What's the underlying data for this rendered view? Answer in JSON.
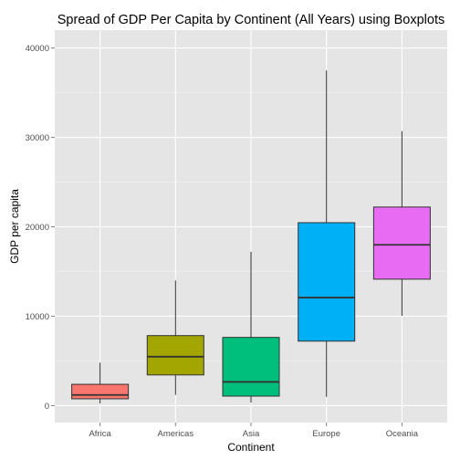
{
  "chart_data": {
    "type": "boxplot",
    "title": "Spread of GDP Per Capita by Continent (All Years) using Boxplots",
    "xlabel": "Continent",
    "ylabel": "GDP per capita",
    "categories": [
      "Africa",
      "Americas",
      "Asia",
      "Europe",
      "Oceania"
    ],
    "ylim": [
      -1900,
      42000
    ],
    "yticks": [
      0,
      10000,
      20000,
      30000,
      40000
    ],
    "ytick_labels": [
      "0",
      "10000",
      "20000",
      "30000",
      "40000"
    ],
    "grid": true,
    "legend": false,
    "colors": {
      "panel_bg": "#e5e5e5",
      "grid_major": "#ffffff",
      "grid_minor": "#f2f2f2",
      "box_outline": "#333333"
    },
    "boxes": [
      {
        "category": "Africa",
        "min": 240,
        "q1": 760,
        "median": 1190,
        "q3": 2380,
        "max": 4800,
        "fill": "#f8766d"
      },
      {
        "category": "Americas",
        "min": 1200,
        "q1": 3430,
        "median": 5470,
        "q3": 7830,
        "max": 14000,
        "fill": "#a3a500"
      },
      {
        "category": "Asia",
        "min": 330,
        "q1": 1060,
        "median": 2650,
        "q3": 7630,
        "max": 17200,
        "fill": "#00bf7d"
      },
      {
        "category": "Europe",
        "min": 970,
        "q1": 7210,
        "median": 12080,
        "q3": 20460,
        "max": 37500,
        "fill": "#00b0f6"
      },
      {
        "category": "Oceania",
        "min": 10040,
        "q1": 14140,
        "median": 17980,
        "q3": 22210,
        "max": 30700,
        "fill": "#e76bf3"
      }
    ]
  }
}
